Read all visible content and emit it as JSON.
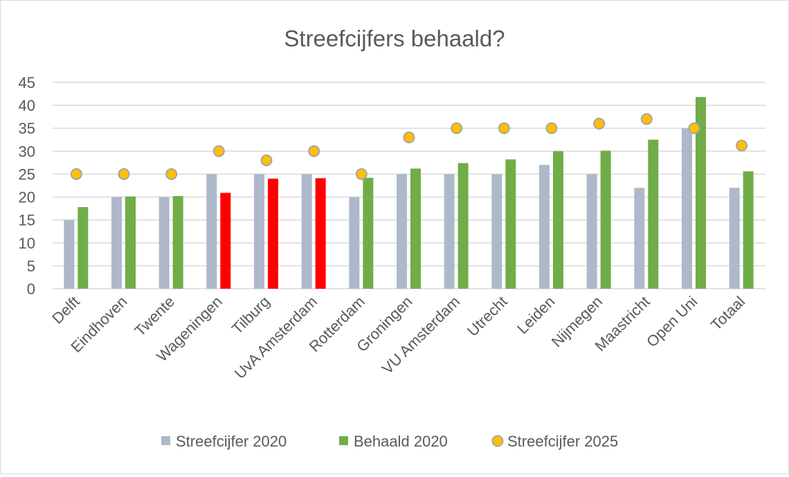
{
  "chart_data": {
    "type": "bar",
    "title": "Streefcijfers behaald?",
    "xlabel": "",
    "ylabel": "",
    "ylim": [
      0,
      45
    ],
    "yticks": [
      0,
      5,
      10,
      15,
      20,
      25,
      30,
      35,
      40,
      45
    ],
    "grid": true,
    "legend_position": "bottom",
    "categories": [
      "Delft",
      "Eindhoven",
      "Twente",
      "Wageningen",
      "Tilburg",
      "UvA Amsterdam",
      "Rotterdam",
      "Groningen",
      "VU Amsterdam",
      "Utrecht",
      "Leiden",
      "Nijmegen",
      "Maastricht",
      "Open Uni",
      "Totaal"
    ],
    "series": [
      {
        "name": "Streefcijfer 2020",
        "kind": "bar",
        "color": "#adb9ca",
        "values": [
          15,
          20,
          20,
          25,
          25,
          25,
          20,
          25,
          25,
          25,
          27,
          25,
          22,
          35,
          22
        ]
      },
      {
        "name": "Behaald 2020",
        "kind": "bar",
        "color": "#70ad47",
        "below_target_color": "#ff0000",
        "values": [
          17.8,
          20.1,
          20.2,
          20.9,
          24.0,
          24.1,
          24.2,
          26.2,
          27.4,
          28.2,
          30.0,
          30.1,
          32.5,
          41.8,
          25.6
        ]
      },
      {
        "name": "Streefcijfer 2025",
        "kind": "marker",
        "color": "#ffc000",
        "edge_color": "#a5a5a5",
        "values": [
          25,
          25,
          25,
          30,
          28,
          30,
          25,
          33,
          35,
          35,
          35,
          36,
          37,
          35,
          31.2
        ]
      }
    ]
  }
}
